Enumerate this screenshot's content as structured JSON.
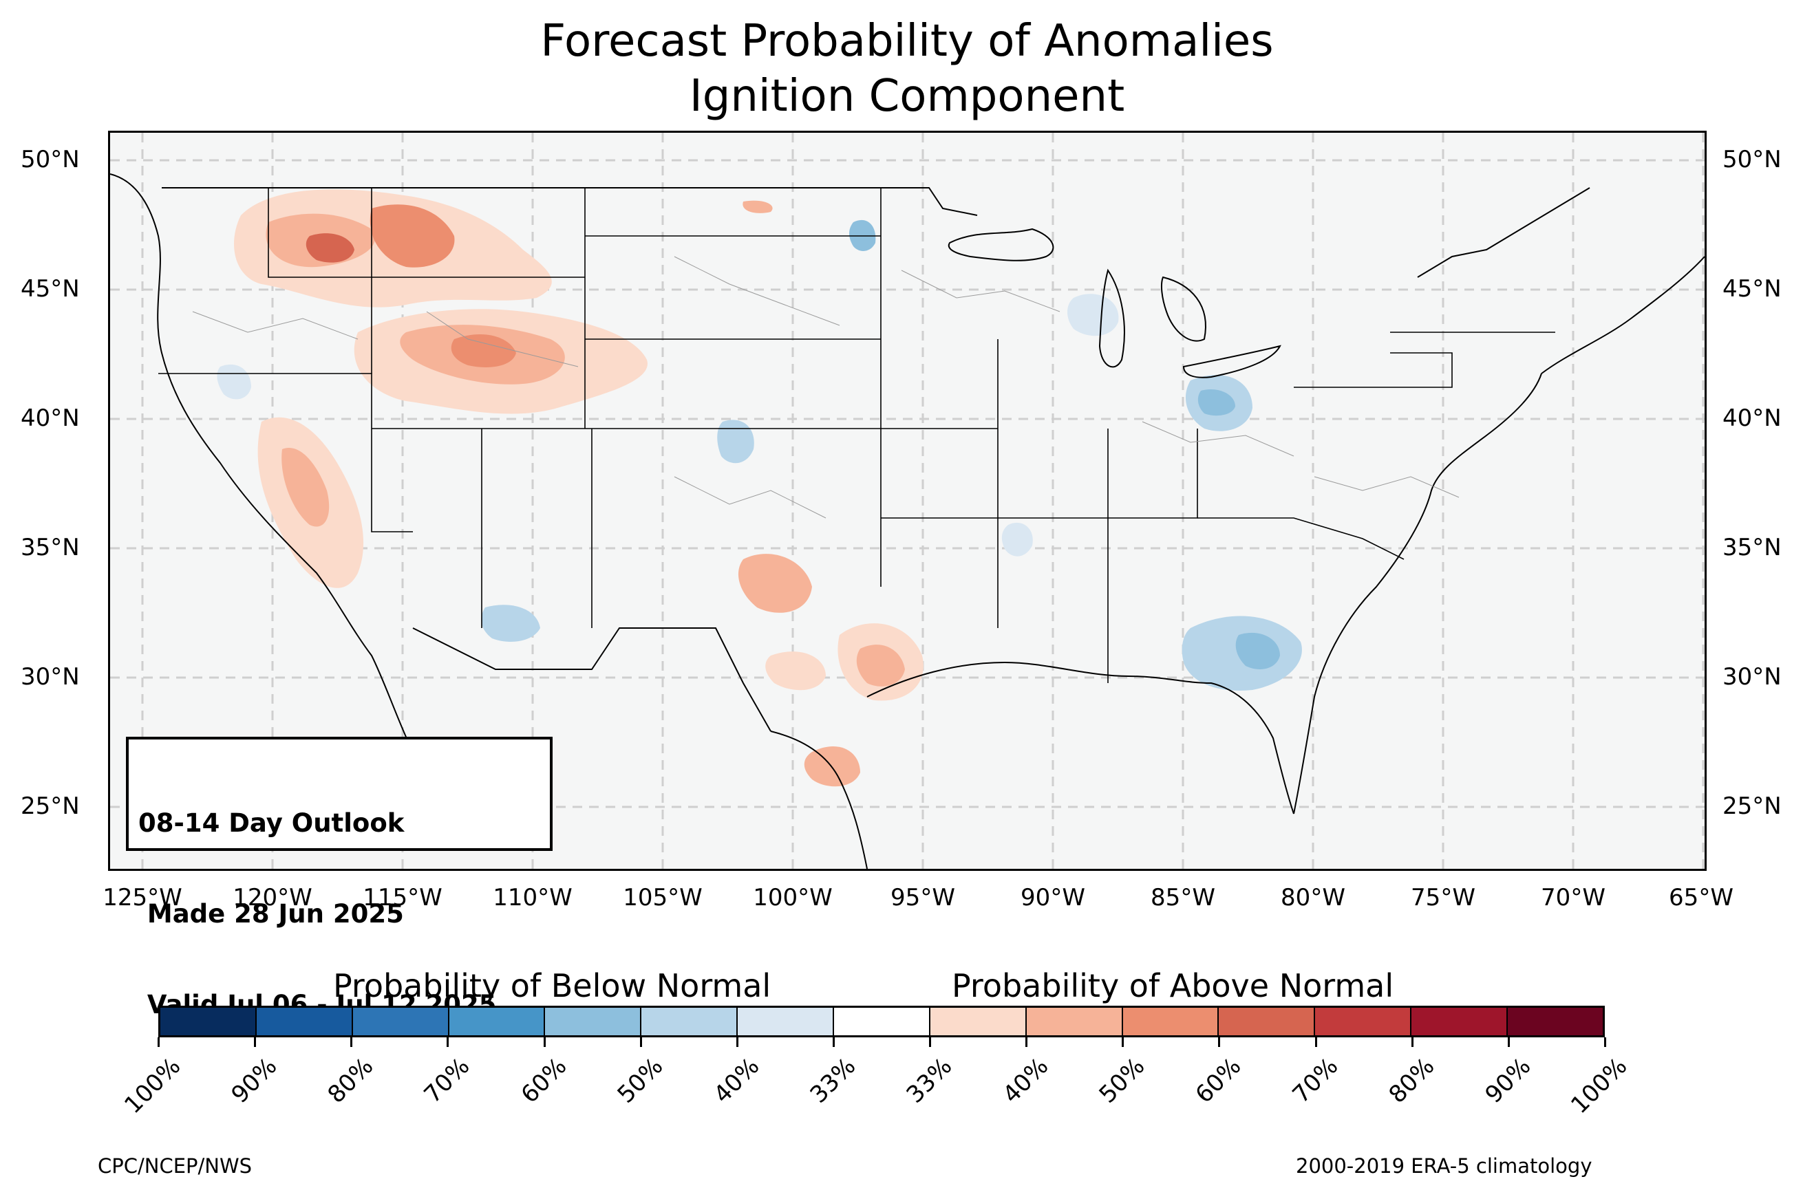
{
  "title": {
    "line1": "Forecast Probability of Anomalies",
    "line2": "Ignition Component"
  },
  "map": {
    "lat_labels": [
      "50°N",
      "45°N",
      "40°N",
      "35°N",
      "30°N",
      "25°N"
    ],
    "lon_labels": [
      "125°W",
      "120°W",
      "115°W",
      "110°W",
      "105°W",
      "100°W",
      "95°W",
      "90°W",
      "85°W",
      "80°W",
      "75°W",
      "70°W",
      "65°W"
    ],
    "background_color": "#f5f6f6",
    "gridline_style": "dashed gray"
  },
  "info_box": {
    "line1": "08-14 Day Outlook",
    "line2": " Made 28 Jun 2025",
    "line3": " Valid Jul 06 - Jul 12 2025"
  },
  "colorbar": {
    "below_label": "Probability of Below Normal",
    "above_label": "Probability of Above Normal",
    "tick_labels": [
      "100%",
      "90%",
      "80%",
      "70%",
      "60%",
      "50%",
      "40%",
      "33%",
      "33%",
      "40%",
      "50%",
      "60%",
      "70%",
      "80%",
      "90%",
      "100%"
    ],
    "colors": [
      "#072c5e",
      "#175a9e",
      "#2d75b5",
      "#4695c8",
      "#8dbfdd",
      "#b7d5e9",
      "#dae7f2",
      "#ffffff",
      "#fbdbcb",
      "#f6b398",
      "#ec8e6f",
      "#d66550",
      "#c23b3c",
      "#9e152b",
      "#6b0420"
    ]
  },
  "footer": {
    "left": "CPC/NCEP/NWS",
    "right": "2000-2019 ERA-5 climatology"
  }
}
